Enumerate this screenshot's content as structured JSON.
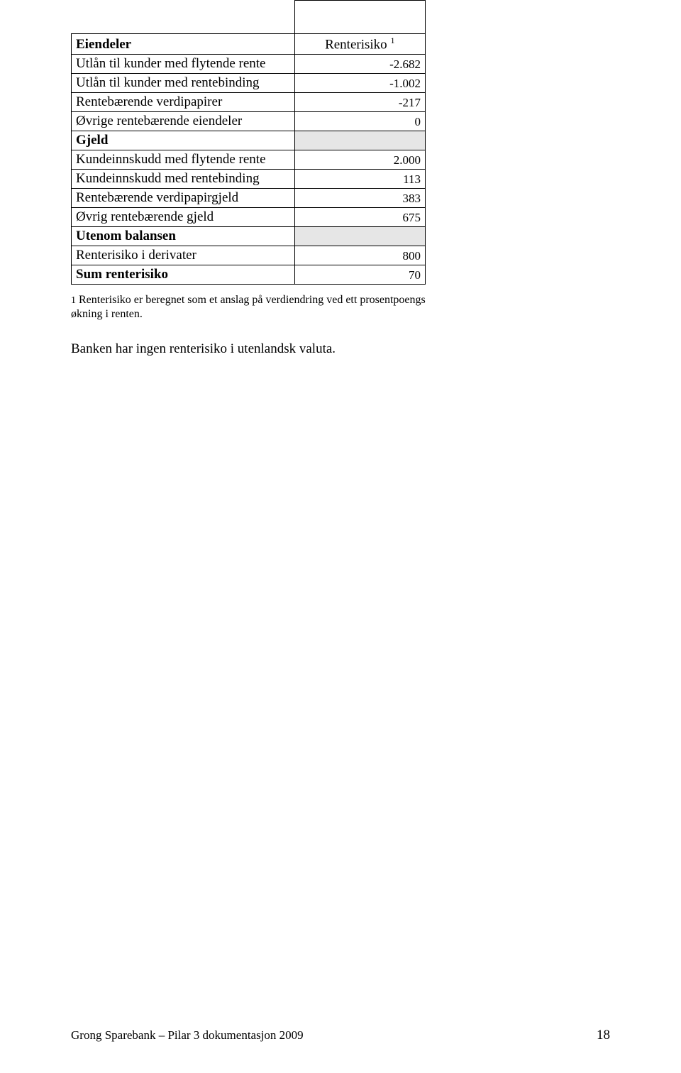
{
  "table": {
    "header": {
      "colA": "Eiendeler",
      "colB": "Renterisiko",
      "colB_sup": "1"
    },
    "rows": [
      {
        "label": "Utlån til kunder med flytende rente",
        "value": "-2.682",
        "value_small": true
      },
      {
        "label": "Utlån til kunder med rentebinding",
        "value": "-1.002",
        "value_small": true
      },
      {
        "label": "Rentebærende verdipapirer",
        "value": "-217",
        "value_small": true
      },
      {
        "label": "Øvrige rentebærende eiendeler",
        "value": "0",
        "value_small": true
      },
      {
        "label": "Gjeld",
        "bold": true,
        "shaded": true
      },
      {
        "label": "Kundeinnskudd med flytende rente",
        "value": "2.000",
        "value_small": true
      },
      {
        "label": "Kundeinnskudd med rentebinding",
        "value": "113",
        "value_small": true
      },
      {
        "label": "Rentebærende verdipapirgjeld",
        "value": "383",
        "value_small": true
      },
      {
        "label": "Øvrig rentebærende gjeld",
        "value": "675",
        "value_small": true
      },
      {
        "label": "Utenom balansen",
        "bold": true,
        "shaded": true
      },
      {
        "label": "Renterisiko i derivater",
        "value": "800",
        "value_small": true
      },
      {
        "label": "Sum renterisiko",
        "bold": true,
        "value": "70",
        "value_small": true
      }
    ]
  },
  "footnote": {
    "lead": "1",
    "text": " Renterisiko er beregnet som et anslag på verdiendring ved ett prosentpoengs økning i renten."
  },
  "paragraph": "Banken har ingen renterisiko i utenlandsk valuta.",
  "footer": {
    "left": "Grong Sparebank – Pilar 3 dokumentasjon 2009",
    "page": "18"
  }
}
